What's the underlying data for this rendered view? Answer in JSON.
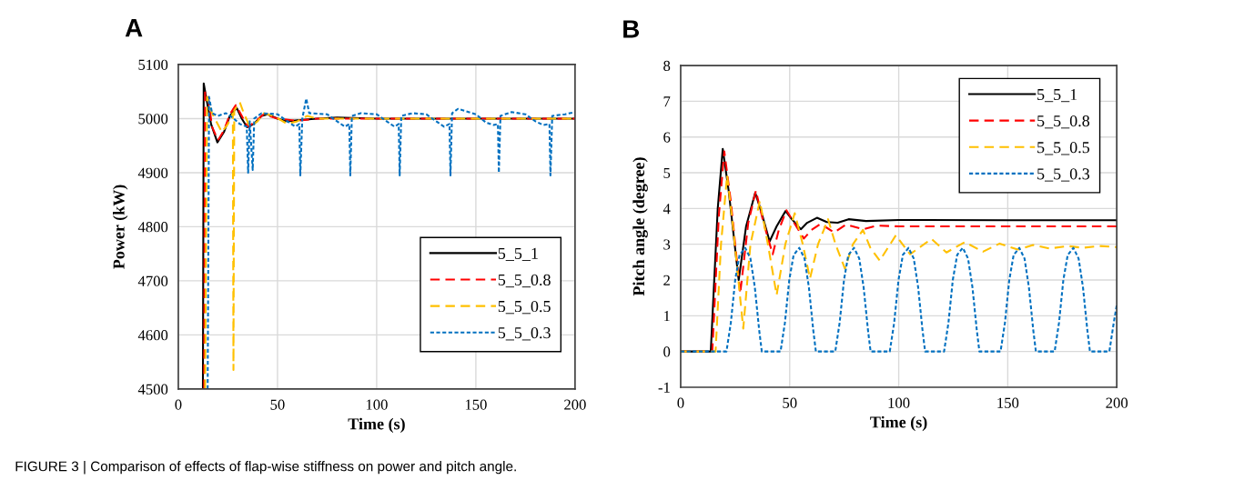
{
  "chart_data": [
    {
      "type": "line",
      "title": "A",
      "xlabel": "Time (s)",
      "ylabel": "Power (kW)",
      "xlim": [
        0,
        200
      ],
      "xticks": [
        0,
        50,
        100,
        150,
        200
      ],
      "ylim": [
        4500,
        5100
      ],
      "yticks": [
        4500,
        4600,
        4700,
        4800,
        4900,
        5000,
        5100
      ],
      "grid": true,
      "legend": "bottom right",
      "annotations": [
        "FIGURE 3 | Comparison of effects of flap-wise stiffness on power and pitch angle."
      ],
      "series": [
        {
          "name": "5_5_1",
          "color": "#000000",
          "line_style": "solid",
          "x": [
            12.4,
            12.8,
            14,
            16.5,
            19.7,
            23,
            26,
            29.4,
            32,
            34.7,
            38,
            42,
            45,
            50,
            55,
            60,
            70,
            80,
            100,
            200
          ],
          "values": [
            4500,
            5065,
            5040,
            4990,
            4956,
            4975,
            5005,
            5020,
            5000,
            4984,
            4990,
            5005,
            5008,
            5000,
            4995,
            4997,
            5000,
            5002,
            5000,
            5000
          ]
        },
        {
          "name": "5_5_0.8",
          "color": "#ff0000",
          "line_style": "dashed",
          "x": [
            13,
            13.5,
            15,
            17,
            20,
            23,
            26,
            29,
            32,
            35,
            38,
            43,
            50,
            60,
            70,
            200
          ],
          "values": [
            4500,
            5050,
            5040,
            4985,
            4960,
            4978,
            5008,
            5025,
            5005,
            4985,
            4992,
            5008,
            5000,
            4996,
            5000,
            5000
          ]
        },
        {
          "name": "5_5_0.5",
          "color": "#ffc000",
          "line_style": "dashed",
          "x": [
            13.5,
            14.5,
            17,
            22,
            25,
            27.5,
            27.8,
            28.2,
            31,
            33,
            36,
            40,
            43,
            48,
            55,
            60,
            65,
            70,
            200
          ],
          "values": [
            4500,
            5040,
            5010,
            4975,
            4990,
            5010,
            4535,
            5015,
            5030,
            5010,
            4985,
            4995,
            5010,
            5005,
            4990,
            4995,
            5005,
            5000,
            5000
          ]
        },
        {
          "name": "5_5_0.3",
          "color": "#0070c0",
          "line_style": "dotted",
          "x": [
            14.8,
            15.5,
            17,
            20,
            24,
            28,
            31,
            34.5,
            35.2,
            36,
            37.5,
            38.3,
            42,
            50,
            55,
            59,
            61,
            61.5,
            62.5,
            64.5,
            66,
            75,
            80,
            84,
            86.2,
            86.7,
            87.5,
            92,
            100,
            105,
            109,
            111.1,
            111.6,
            112.4,
            118,
            125,
            130,
            134,
            136.7,
            137.2,
            138,
            141,
            150,
            155,
            159,
            161.1,
            161.6,
            162.4,
            168,
            175,
            180,
            184,
            187.1,
            187.6,
            188.5,
            195,
            200
          ],
          "values": [
            4500,
            5040,
            5010,
            5005,
            5010,
            5000,
            4990,
            4985,
            4900,
            4995,
            4905,
            5000,
            5010,
            5008,
            4995,
            4985,
            4990,
            4895,
            5000,
            5037,
            5010,
            5008,
            4995,
            4985,
            4990,
            4895,
            5005,
            5010,
            5008,
            4995,
            4985,
            4990,
            4895,
            5005,
            5010,
            5008,
            4995,
            4985,
            4990,
            4895,
            5010,
            5018,
            5008,
            4993,
            4988,
            4990,
            4900,
            5005,
            5012,
            5008,
            4995,
            4988,
            4990,
            4895,
            5005,
            5008,
            5012
          ]
        }
      ]
    },
    {
      "type": "line",
      "title": "B",
      "xlabel": "Time (s)",
      "ylabel": "Pitch angle (degree)",
      "xlim": [
        0,
        200
      ],
      "xticks": [
        0,
        50,
        100,
        150,
        200
      ],
      "ylim": [
        -1,
        8
      ],
      "yticks": [
        -1,
        0,
        1,
        2,
        3,
        4,
        5,
        6,
        7,
        8
      ],
      "grid": true,
      "legend": "top right",
      "series": [
        {
          "name": "5_5_1",
          "color": "#000000",
          "line_style": "solid",
          "x": [
            0,
            13.8,
            17,
            19.3,
            22,
            26.6,
            30,
            34.2,
            37,
            40.8,
            44,
            48.1,
            51,
            55.1,
            58,
            62.5,
            67,
            72,
            77,
            85,
            100,
            150,
            200
          ],
          "values": [
            0,
            0,
            4.0,
            5.67,
            4.5,
            2.0,
            3.5,
            4.44,
            3.9,
            3.08,
            3.5,
            3.93,
            3.7,
            3.42,
            3.6,
            3.74,
            3.62,
            3.6,
            3.7,
            3.65,
            3.68,
            3.67,
            3.67
          ]
        },
        {
          "name": "5_5_0.8",
          "color": "#ff0000",
          "line_style": "dashed",
          "x": [
            0,
            14.5,
            17.5,
            20,
            23,
            27.3,
            31,
            34.5,
            38,
            42.2,
            45,
            48.5,
            52,
            56.5,
            60,
            64.2,
            70.4,
            75.8,
            83.6,
            90,
            100,
            150,
            200
          ],
          "values": [
            0,
            0,
            3.8,
            5.6,
            4.2,
            1.62,
            3.6,
            4.5,
            3.6,
            2.72,
            3.4,
            3.95,
            3.6,
            3.16,
            3.4,
            3.57,
            3.33,
            3.55,
            3.42,
            3.52,
            3.5,
            3.5,
            3.5
          ]
        },
        {
          "name": "5_5_0.5",
          "color": "#ffc000",
          "line_style": "dashed",
          "x": [
            0,
            16,
            18.5,
            21.3,
            24,
            28.7,
            32,
            36.3,
            40,
            44,
            48,
            52.3,
            56,
            59.3,
            63,
            67.6,
            71,
            75.3,
            79,
            83.6,
            87,
            91.3,
            95,
            98.7,
            105.2,
            115,
            121.9,
            130.3,
            138.6,
            146.3,
            154.6,
            161.6,
            169.2,
            177.6,
            184.5,
            192.2,
            200
          ],
          "values": [
            0,
            0,
            3.0,
            4.93,
            3.5,
            0.64,
            3.0,
            4.21,
            3.0,
            1.58,
            3.0,
            3.87,
            3.0,
            2.04,
            3.0,
            3.7,
            3.0,
            2.32,
            3.0,
            3.4,
            2.9,
            2.54,
            2.9,
            3.25,
            2.72,
            3.15,
            2.77,
            3.06,
            2.79,
            3.02,
            2.85,
            2.98,
            2.88,
            2.95,
            2.9,
            2.95,
            2.92
          ]
        },
        {
          "name": "5_5_0.3",
          "color": "#0070c0",
          "line_style": "dotted",
          "x": [
            0,
            21,
            23,
            25,
            27,
            29.6,
            32,
            34,
            36,
            37.2,
            45.8,
            47.8,
            49.8,
            51.8,
            54.4,
            56.8,
            58.8,
            60.8,
            62,
            70.9,
            72.9,
            74.9,
            76.9,
            79.5,
            81.9,
            83.9,
            85.9,
            87.1,
            95.9,
            97.9,
            99.9,
            101.9,
            104.5,
            106.9,
            108.9,
            110.9,
            112.1,
            120.8,
            122.8,
            124.8,
            126.8,
            129.4,
            131.8,
            133.8,
            135.8,
            137,
            146.7,
            148.7,
            150.7,
            152.7,
            155.3,
            157.7,
            159.7,
            161.7,
            162.9,
            171.5,
            173.5,
            175.5,
            177.5,
            180.1,
            182.5,
            184.5,
            186.5,
            187.7,
            196.6,
            198.6,
            200
          ],
          "values": [
            0,
            0,
            0.8,
            2.0,
            2.7,
            2.9,
            2.6,
            1.8,
            0.6,
            0,
            0,
            0.8,
            2.0,
            2.7,
            2.9,
            2.6,
            1.8,
            0.6,
            0,
            0,
            0.8,
            2.0,
            2.7,
            2.9,
            2.6,
            1.8,
            0.6,
            0,
            0,
            0.8,
            2.0,
            2.7,
            2.9,
            2.6,
            1.8,
            0.6,
            0,
            0,
            0.8,
            2.0,
            2.7,
            2.9,
            2.6,
            1.8,
            0.6,
            0,
            0,
            0.8,
            2.0,
            2.7,
            2.9,
            2.6,
            1.8,
            0.6,
            0,
            0,
            0.8,
            2.0,
            2.7,
            2.9,
            2.6,
            1.8,
            0.6,
            0,
            0,
            0.8,
            1.3
          ]
        }
      ]
    }
  ]
}
